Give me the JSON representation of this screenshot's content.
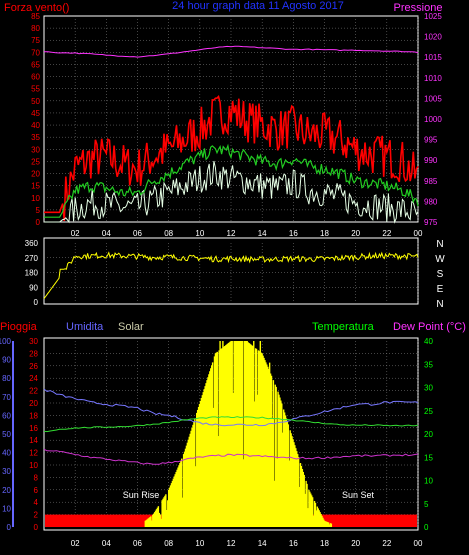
{
  "header": {
    "left_label": "Forza vento()",
    "title": "24 hour graph data  11 Agosto 2017",
    "right_label": "Pressione"
  },
  "colors": {
    "wind_gust": "#ff0000",
    "wind_avg": "#22cc22",
    "wind_low": "#e6ffe6",
    "pressure": "#ff33ff",
    "direction": "#ffff00",
    "humidity": "#7777ff",
    "temperature": "#33dd33",
    "dewpoint": "#cc33cc",
    "solar": "#ffff00",
    "rain": "#ff0000",
    "left_scale": "#ff0000",
    "humidity_scale": "#6666ff",
    "temperature_scale": "#00ff00",
    "grid": "#888888",
    "axis": "#ffffff"
  },
  "chart_data": [
    {
      "type": "line",
      "panel": "wind_pressure",
      "x_ticks": [
        "02",
        "04",
        "06",
        "08",
        "10",
        "12",
        "14",
        "16",
        "18",
        "20",
        "22",
        "00"
      ],
      "left_axis": {
        "label": "Forza vento()",
        "ticks": [
          0,
          5,
          10,
          15,
          20,
          25,
          30,
          35,
          40,
          45,
          50,
          55,
          60,
          65,
          70,
          75,
          80,
          85
        ],
        "ylim": [
          0,
          85
        ]
      },
      "right_axis": {
        "label": "Pressione",
        "ticks": [
          975,
          980,
          985,
          990,
          995,
          1000,
          1005,
          1010,
          1015,
          1020,
          1025
        ],
        "ylim": [
          975,
          1025
        ]
      },
      "x_hours": [
        0,
        1,
        2,
        3,
        4,
        5,
        6,
        7,
        8,
        9,
        10,
        11,
        12,
        13,
        14,
        15,
        16,
        17,
        18,
        19,
        20,
        21,
        22,
        23,
        24
      ],
      "series": [
        {
          "name": "gust",
          "values": [
            4,
            4,
            22,
            26,
            27,
            24,
            22,
            27,
            30,
            34,
            38,
            44,
            46,
            42,
            40,
            38,
            39,
            36,
            36,
            34,
            30,
            28,
            27,
            25,
            18
          ]
        },
        {
          "name": "average",
          "values": [
            2,
            2,
            13,
            15,
            14,
            12,
            12,
            17,
            20,
            24,
            27,
            30,
            29,
            27,
            25,
            24,
            26,
            23,
            22,
            20,
            17,
            16,
            15,
            13,
            9
          ]
        },
        {
          "name": "low",
          "values": [
            0,
            0,
            5,
            8,
            7,
            6,
            6,
            9,
            12,
            15,
            18,
            20,
            18,
            17,
            15,
            14,
            16,
            13,
            12,
            10,
            8,
            7,
            6,
            5,
            3
          ]
        },
        {
          "name": "pressure",
          "values": [
            1016.3,
            1016.1,
            1016.0,
            1015.8,
            1015.5,
            1015.3,
            1015.1,
            1015.4,
            1015.8,
            1016.3,
            1016.8,
            1017.3,
            1017.6,
            1017.5,
            1017.3,
            1017.1,
            1016.9,
            1016.9,
            1016.8,
            1016.7,
            1016.7,
            1016.6,
            1016.5,
            1016.4,
            1016.2
          ]
        }
      ]
    },
    {
      "type": "line",
      "panel": "wind_direction",
      "left_axis": {
        "ticks": [
          0,
          90,
          180,
          270,
          360
        ],
        "ylim": [
          0,
          360
        ]
      },
      "right_labels": [
        "N",
        "W",
        "S",
        "E",
        "N"
      ],
      "x_hours": [
        0,
        1,
        2,
        3,
        4,
        5,
        6,
        7,
        8,
        9,
        10,
        11,
        12,
        13,
        14,
        15,
        16,
        17,
        18,
        19,
        20,
        21,
        22,
        23,
        24
      ],
      "series": [
        {
          "name": "direction",
          "values": [
            20,
            150,
            280,
            282,
            285,
            282,
            278,
            272,
            275,
            270,
            268,
            262,
            265,
            262,
            260,
            262,
            265,
            262,
            263,
            268,
            275,
            280,
            282,
            280,
            278
          ]
        }
      ]
    },
    {
      "type": "line",
      "panel": "weather",
      "labels": {
        "rain": "Pioggia",
        "humidity": "Umidita",
        "solar": "Solar",
        "temperature": "Temperatura",
        "dewpoint": "Dew Point (°C)"
      },
      "x_ticks": [
        "02",
        "04",
        "06",
        "08",
        "10",
        "12",
        "14",
        "16",
        "18",
        "20",
        "22",
        "00"
      ],
      "humidity_axis": {
        "ticks": [
          0,
          10,
          20,
          30,
          40,
          50,
          60,
          70,
          80,
          90,
          100
        ],
        "ylim": [
          0,
          100
        ]
      },
      "rain_axis": {
        "ticks": [
          0,
          2,
          4,
          6,
          8,
          10,
          12,
          14,
          16,
          18,
          20,
          22,
          24,
          26,
          28,
          30
        ],
        "ylim": [
          0,
          30
        ]
      },
      "temperature_axis": {
        "ticks": [
          0,
          5,
          10,
          15,
          20,
          25,
          30,
          35,
          40
        ],
        "ylim": [
          0,
          40
        ]
      },
      "annotations": [
        "Sun Rise",
        "Sun Set"
      ],
      "x_hours": [
        0,
        1,
        2,
        3,
        4,
        5,
        6,
        7,
        8,
        9,
        10,
        11,
        12,
        13,
        14,
        15,
        16,
        17,
        18,
        19,
        20,
        21,
        22,
        23,
        24
      ],
      "series": [
        {
          "name": "humidity",
          "values": [
            74,
            71,
            69,
            67,
            66,
            65,
            64,
            61,
            60,
            58,
            56,
            55,
            55,
            55,
            55,
            56,
            58,
            60,
            62,
            64,
            66,
            66,
            67,
            67,
            67
          ]
        },
        {
          "name": "temperature",
          "values": [
            20.5,
            21.0,
            21.3,
            21.4,
            21.5,
            21.6,
            21.8,
            22.1,
            22.5,
            23.0,
            23.4,
            23.6,
            23.6,
            23.6,
            23.5,
            23.3,
            23.0,
            22.6,
            22.3,
            22.0,
            21.9,
            21.9,
            21.8,
            21.8,
            21.8
          ]
        },
        {
          "name": "dewpoint",
          "values": [
            16.6,
            16.2,
            15.6,
            15.0,
            14.6,
            14.2,
            13.8,
            13.5,
            13.8,
            14.5,
            15.0,
            15.3,
            15.5,
            15.4,
            15.2,
            15.0,
            14.8,
            14.8,
            14.9,
            15.1,
            15.3,
            15.3,
            15.4,
            15.5,
            15.5
          ]
        },
        {
          "name": "solar",
          "values": [
            0,
            0,
            0,
            0,
            0,
            0,
            0,
            2,
            6,
            12,
            20,
            28,
            30,
            30,
            28,
            22,
            14,
            6,
            1,
            0,
            0,
            0,
            0,
            0,
            0
          ]
        },
        {
          "name": "rain",
          "values": [
            2,
            2,
            2,
            2,
            2,
            2,
            2,
            2,
            2,
            2,
            2,
            2,
            2,
            2,
            2,
            2,
            2,
            2,
            2,
            2,
            2,
            2,
            2,
            2,
            2
          ]
        }
      ]
    }
  ]
}
